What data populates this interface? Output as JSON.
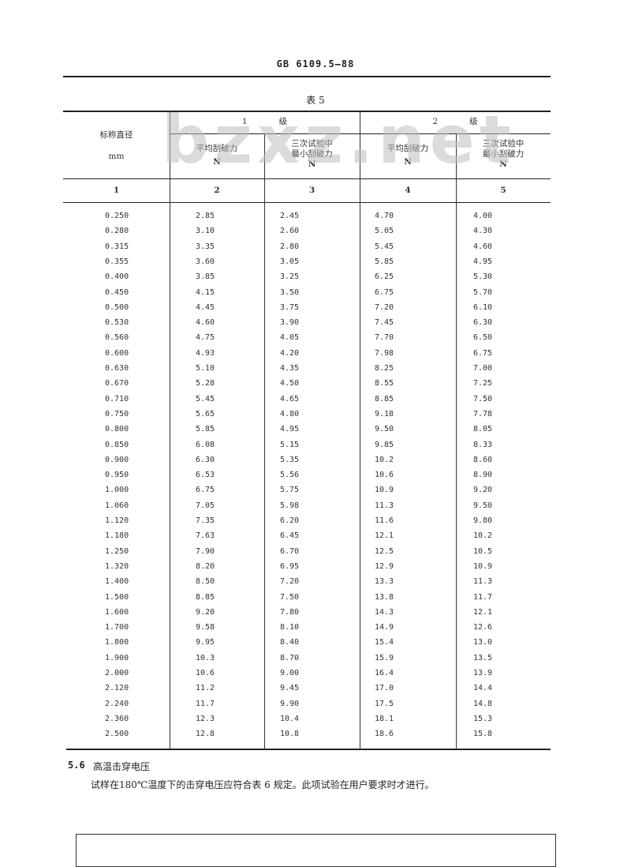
{
  "header": {
    "doc_code": "GB 6109.5—88"
  },
  "table": {
    "title": "表 5",
    "col1_header": "标称直径",
    "col1_unit": "mm",
    "grade1_num": "1",
    "grade2_num": "2",
    "grade_label": "级",
    "avg_label": "平均刮破力",
    "min_label_1": "三次试验中",
    "min_label_2": "最小刮破力",
    "unit_n": "N",
    "col_numbers": [
      "1",
      "2",
      "3",
      "4",
      "5"
    ],
    "rows": [
      [
        "0.250",
        "2.85",
        "2.45",
        "4.70",
        "4.00"
      ],
      [
        "0.280",
        "3.10",
        "2.60",
        "5.05",
        "4.30"
      ],
      [
        "0.315",
        "3.35",
        "2.80",
        "5.45",
        "4.60"
      ],
      [
        "0.355",
        "3.60",
        "3.05",
        "5.85",
        "4.95"
      ],
      [
        "0.400",
        "3.85",
        "3.25",
        "6.25",
        "5.30"
      ],
      [
        "0.450",
        "4.15",
        "3.50",
        "6.75",
        "5.70"
      ],
      [
        "0.500",
        "4.45",
        "3.75",
        "7.20",
        "6.10"
      ],
      [
        "0.530",
        "4.60",
        "3.90",
        "7.45",
        "6.30"
      ],
      [
        "0.560",
        "4.75",
        "4.05",
        "7.70",
        "6.50"
      ],
      [
        "0.600",
        "4.93",
        "4.20",
        "7.98",
        "6.75"
      ],
      [
        "0.630",
        "5.10",
        "4.35",
        "8.25",
        "7.00"
      ],
      [
        "0.670",
        "5.28",
        "4.50",
        "8.55",
        "7.25"
      ],
      [
        "0.710",
        "5.45",
        "4.65",
        "8.85",
        "7.50"
      ],
      [
        "0.750",
        "5.65",
        "4.80",
        "9.18",
        "7.78"
      ],
      [
        "0.800",
        "5.85",
        "4.95",
        "9.50",
        "8.05"
      ],
      [
        "0.850",
        "6.08",
        "5.15",
        "9.85",
        "8.33"
      ],
      [
        "0.900",
        "6.30",
        "5.35",
        "10.2",
        "8.60"
      ],
      [
        "0.950",
        "6.53",
        "5.56",
        "10.6",
        "8.90"
      ],
      [
        "1.000",
        "6.75",
        "5.75",
        "10.9",
        "9.20"
      ],
      [
        "1.060",
        "7.05",
        "5.98",
        "11.3",
        "9.50"
      ],
      [
        "1.120",
        "7.35",
        "6.20",
        "11.6",
        "9.80"
      ],
      [
        "1.180",
        "7.63",
        "6.45",
        "12.1",
        "10.2"
      ],
      [
        "1.250",
        "7.90",
        "6.70",
        "12.5",
        "10.5"
      ],
      [
        "1.320",
        "8.20",
        "6.95",
        "12.9",
        "10.9"
      ],
      [
        "1.400",
        "8.50",
        "7.20",
        "13.3",
        "11.3"
      ],
      [
        "1.500",
        "8.85",
        "7.50",
        "13.8",
        "11.7"
      ],
      [
        "1.600",
        "9.20",
        "7.80",
        "14.3",
        "12.1"
      ],
      [
        "1.700",
        "9.58",
        "8.10",
        "14.9",
        "12.6"
      ],
      [
        "1.800",
        "9.95",
        "8.40",
        "15.4",
        "13.0"
      ],
      [
        "1.900",
        "10.3",
        "8.70",
        "15.9",
        "13.5"
      ],
      [
        "2.000",
        "10.6",
        "9.00",
        "16.4",
        "13.9"
      ],
      [
        "2.120",
        "11.2",
        "9.45",
        "17.0",
        "14.4"
      ],
      [
        "2.240",
        "11.7",
        "9.90",
        "17.5",
        "14.8"
      ],
      [
        "2.360",
        "12.3",
        "10.4",
        "18.1",
        "15.3"
      ],
      [
        "2.500",
        "12.8",
        "10.8",
        "18.6",
        "15.8"
      ]
    ]
  },
  "section": {
    "number": "5.6",
    "title": "高温击穿电压",
    "body": "试样在180℃温度下的击穿电压应符合表 6 规定。此项试验在用户要求时才进行。"
  },
  "watermark": "bzxz.net"
}
